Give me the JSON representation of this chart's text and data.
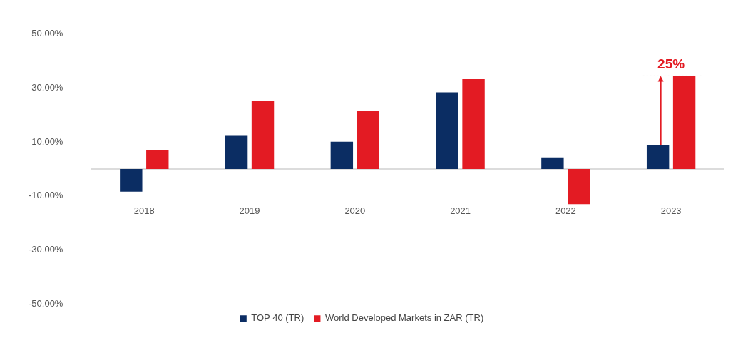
{
  "chart_data": {
    "type": "bar",
    "categories": [
      "2018",
      "2019",
      "2020",
      "2021",
      "2022",
      "2023"
    ],
    "series": [
      {
        "name": "TOP 40 (TR)",
        "color": "#0b2d63",
        "values": [
          -8.4,
          12.3,
          10.1,
          28.4,
          4.3,
          8.9
        ]
      },
      {
        "name": "World Developed Markets in ZAR (TR)",
        "color": "#e31b23",
        "values": [
          7.0,
          25.1,
          21.7,
          33.3,
          -13.0,
          34.5
        ]
      }
    ],
    "ylim": [
      -50,
      50
    ],
    "yticks": [
      {
        "value": -50,
        "label": "-50.00%"
      },
      {
        "value": -30,
        "label": "-30.00%"
      },
      {
        "value": -10,
        "label": "-10.00%"
      },
      {
        "value": 10,
        "label": "10.00%"
      },
      {
        "value": 30,
        "label": "30.00%"
      },
      {
        "value": 50,
        "label": "50.00%"
      }
    ],
    "grid": false,
    "legend": "bottom",
    "annotations": [
      {
        "text": "25%",
        "x": "2023",
        "y": 34.5
      }
    ]
  }
}
